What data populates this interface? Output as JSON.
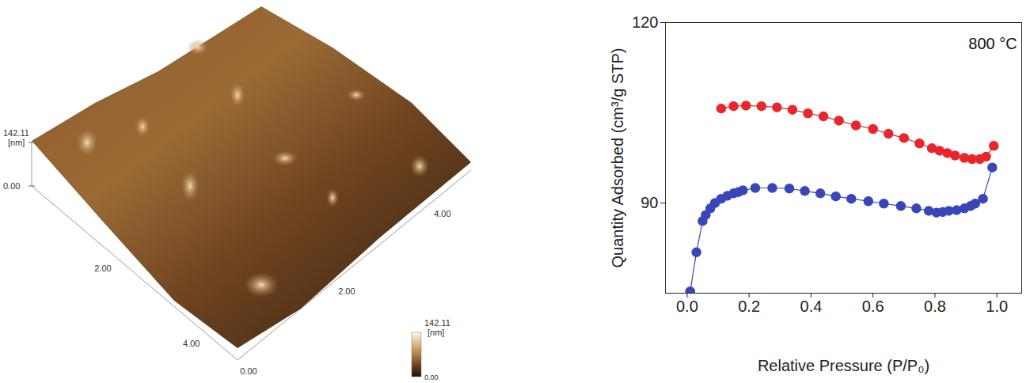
{
  "chart_data": {
    "type": "line",
    "x_label": "Relative Pressure (P/P₀)",
    "y_label": "Quantity Adsorbed (cm³/g STP)",
    "annotations": [
      {
        "text": "800 °C",
        "x": 1.065,
        "y": 116.5
      }
    ],
    "xlim": [
      -0.07,
      1.08
    ],
    "ylim": [
      75,
      120
    ],
    "xticks": [
      {
        "value": 0,
        "label": "0.0"
      },
      {
        "value": 0.2,
        "label": "0.2"
      },
      {
        "value": 0.4,
        "label": "0.4"
      },
      {
        "value": 0.6,
        "label": "0.6"
      },
      {
        "value": 0.8,
        "label": "0.8"
      },
      {
        "value": 1,
        "label": "1.0"
      }
    ],
    "yticks": [
      90,
      120
    ],
    "grid": false,
    "series": [
      {
        "color": "#3a46b8",
        "marker": "circle",
        "line_style": "solid",
        "x": [
          0.01,
          0.03,
          0.05,
          0.06,
          0.075,
          0.09,
          0.11,
          0.13,
          0.15,
          0.165,
          0.18,
          0.22,
          0.275,
          0.33,
          0.38,
          0.43,
          0.48,
          0.53,
          0.585,
          0.635,
          0.69,
          0.74,
          0.78,
          0.805,
          0.825,
          0.845,
          0.87,
          0.895,
          0.915,
          0.93,
          0.955,
          0.985
        ],
        "values": [
          75.3,
          81.8,
          87.0,
          88.0,
          89.1,
          90.0,
          90.7,
          91.2,
          91.6,
          91.8,
          92.1,
          92.5,
          92.5,
          92.4,
          92.0,
          91.6,
          91.1,
          90.7,
          90.3,
          89.9,
          89.5,
          89.1,
          88.7,
          88.4,
          88.5,
          88.7,
          88.8,
          89.1,
          89.5,
          89.9,
          90.7,
          95.9
        ]
      },
      {
        "color": "#e8262b",
        "marker": "circle",
        "line_style": "solid",
        "x": [
          0.11,
          0.15,
          0.19,
          0.24,
          0.29,
          0.34,
          0.39,
          0.44,
          0.49,
          0.545,
          0.6,
          0.65,
          0.7,
          0.75,
          0.79,
          0.815,
          0.84,
          0.865,
          0.895,
          0.92,
          0.945,
          0.965,
          0.99
        ],
        "values": [
          105.7,
          106.1,
          106.2,
          106.1,
          105.9,
          105.5,
          104.9,
          104.4,
          103.7,
          102.9,
          102.3,
          101.5,
          100.8,
          99.9,
          99.1,
          98.7,
          98.3,
          97.9,
          97.5,
          97.3,
          97.3,
          97.7,
          99.5
        ]
      }
    ]
  },
  "afm_image": {
    "z_scale": {
      "top": "142.11",
      "unit": "[nm]",
      "bottom": "0.00"
    },
    "left_axis_labels": [
      "2.00",
      "4.00"
    ],
    "right_axis_labels": [
      "0.00",
      "2.00",
      "4.00"
    ],
    "colorbar": {
      "top": "142.11",
      "unit": "[nm]",
      "bottom": "0.00"
    }
  }
}
